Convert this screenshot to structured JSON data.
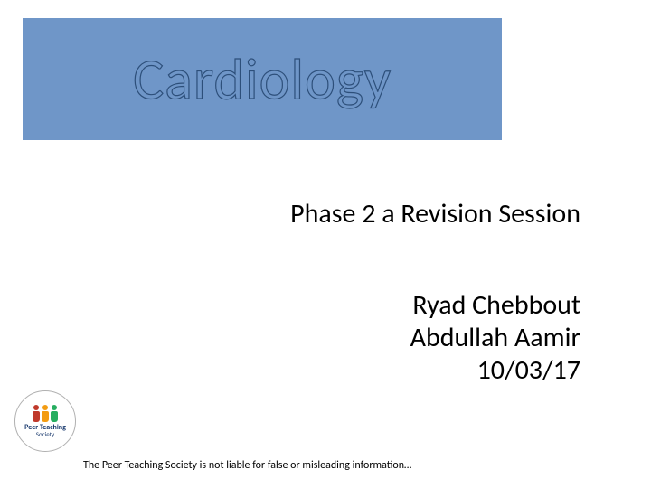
{
  "banner": {
    "title": "Cardiology",
    "background_color": "#6f96c8",
    "title_fill_color": "#6f96c8",
    "title_stroke_color": "#2d4f7a",
    "title_fontsize": 64
  },
  "subtitle": "Phase 2 a Revision Session",
  "authors": {
    "name1": "Ryad Chebbout",
    "name2": "Abdullah Aamir",
    "date": "10/03/17"
  },
  "logo": {
    "line1": "Peer Teaching",
    "line2": "Society",
    "figure_colors": [
      "#c0392b",
      "#f39c12",
      "#27ae60"
    ]
  },
  "disclaimer": "The Peer Teaching Society is not liable for false or misleading information…",
  "colors": {
    "page_bg": "#ffffff",
    "text": "#000000"
  },
  "typography": {
    "subtitle_fontsize": 30,
    "author_fontsize": 30,
    "disclaimer_fontsize": 12,
    "font_family": "Calibri"
  }
}
